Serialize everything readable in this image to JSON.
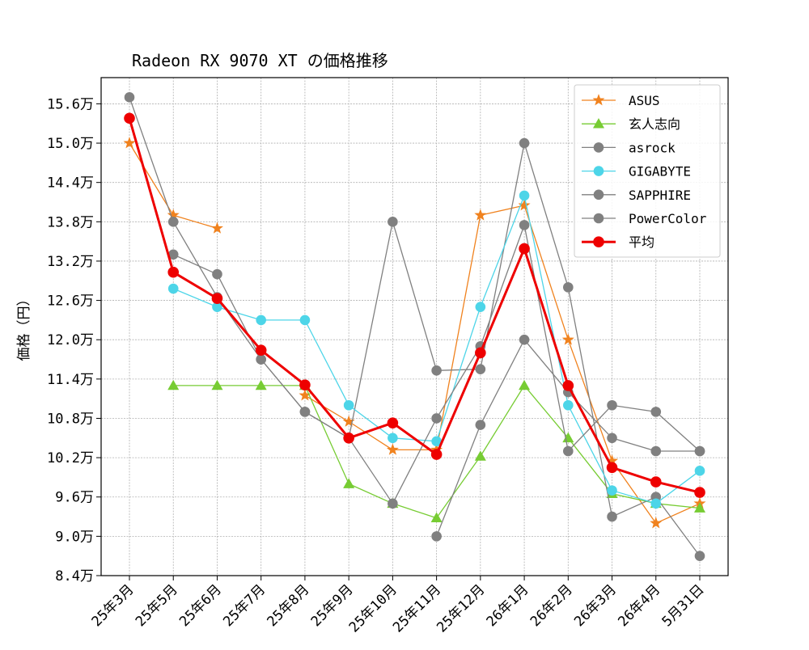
{
  "chart_data": {
    "type": "line",
    "title": "Radeon RX 9070 XT の価格推移",
    "xlabel": "",
    "ylabel": "価格（円）",
    "categories": [
      "25年3月",
      "25年5月",
      "25年6月",
      "25年7月",
      "25年8月",
      "25年9月",
      "25年10月",
      "25年11月",
      "25年12月",
      "26年1月",
      "26年2月",
      "26年3月",
      "26年4月",
      "5月31日"
    ],
    "ylim": [
      84000,
      160000
    ],
    "yticks": [
      84000,
      90000,
      96000,
      102000,
      108000,
      114000,
      120000,
      126000,
      132000,
      138000,
      144000,
      150000,
      156000
    ],
    "ytick_labels": [
      "8.4万",
      "9.0万",
      "9.6万",
      "10.2万",
      "10.8万",
      "11.4万",
      "12.0万",
      "12.6万",
      "13.2万",
      "13.8万",
      "14.4万",
      "15.0万",
      "15.6万"
    ],
    "grid": true,
    "legend_position": "upper-right",
    "series": [
      {
        "name": "ASUS",
        "color": "#f0821e",
        "marker": "star",
        "width": 1.3,
        "values": [
          150000,
          139000,
          137000,
          null,
          111500,
          107500,
          103200,
          103200,
          139000,
          140500,
          120000,
          101500,
          92000,
          95000
        ]
      },
      {
        "name": "玄人志向",
        "color": "#77cc33",
        "marker": "triangle",
        "width": 1.3,
        "values": [
          null,
          113000,
          113000,
          113000,
          113000,
          98000,
          95000,
          92800,
          102200,
          113000,
          105000,
          96500,
          95000,
          94300
        ]
      },
      {
        "name": "asrock",
        "color": "#808080",
        "marker": "circle",
        "width": 1.3,
        "values": [
          157000,
          138000,
          126500,
          117000,
          109000,
          105000,
          138000,
          115300,
          115500,
          150000,
          128000,
          93000,
          96000,
          87000
        ]
      },
      {
        "name": "GIGABYTE",
        "color": "#4dd5e8",
        "marker": "circle",
        "width": 1.3,
        "values": [
          null,
          127800,
          125000,
          123000,
          123000,
          110000,
          105000,
          104500,
          125000,
          142000,
          110000,
          97000,
          95000,
          100000
        ]
      },
      {
        "name": "SAPPHIRE",
        "color": "#808080",
        "marker": "circle",
        "width": 1.3,
        "values": [
          null,
          133000,
          130000,
          117000,
          109000,
          105000,
          95000,
          108000,
          119000,
          137500,
          103000,
          110000,
          109000,
          103000
        ]
      },
      {
        "name": "PowerColor",
        "color": "#808080",
        "marker": "circle",
        "width": 1.3,
        "values": [
          null,
          null,
          null,
          null,
          null,
          null,
          null,
          90000,
          107000,
          120000,
          112000,
          105000,
          103000,
          103000
        ]
      },
      {
        "name": "平均",
        "color": "#ee0000",
        "marker": "circle",
        "width": 3,
        "values": [
          153800,
          130300,
          126300,
          118400,
          113100,
          105000,
          107300,
          102500,
          118000,
          133900,
          113000,
          100500,
          98300,
          96700
        ]
      }
    ]
  }
}
